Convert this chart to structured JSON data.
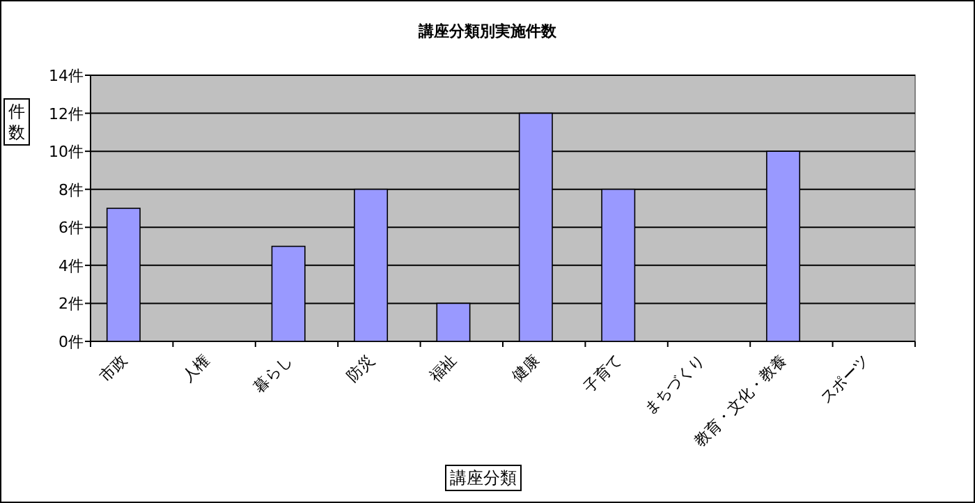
{
  "chart_data": {
    "type": "bar",
    "title": "講座分類別実施件数",
    "xlabel": "講座分類",
    "ylabel": "件数",
    "categories": [
      "市政",
      "人権",
      "暮らし",
      "防災",
      "福祉",
      "健康",
      "子育て",
      "まちづくり",
      "教育・文化・教養",
      "スポーツ"
    ],
    "values": [
      7,
      0,
      5,
      8,
      2,
      12,
      8,
      0,
      10,
      0
    ],
    "color": "#9999ff",
    "ylim": [
      0,
      14
    ],
    "yticks": [
      {
        "value": 0,
        "label": "0件"
      },
      {
        "value": 2,
        "label": "2件"
      },
      {
        "value": 4,
        "label": "4件"
      },
      {
        "value": 6,
        "label": "6件"
      },
      {
        "value": 8,
        "label": "8件"
      },
      {
        "value": 10,
        "label": "10件"
      },
      {
        "value": 12,
        "label": "12件"
      },
      {
        "value": 14,
        "label": "14件"
      }
    ],
    "grid": "y"
  }
}
